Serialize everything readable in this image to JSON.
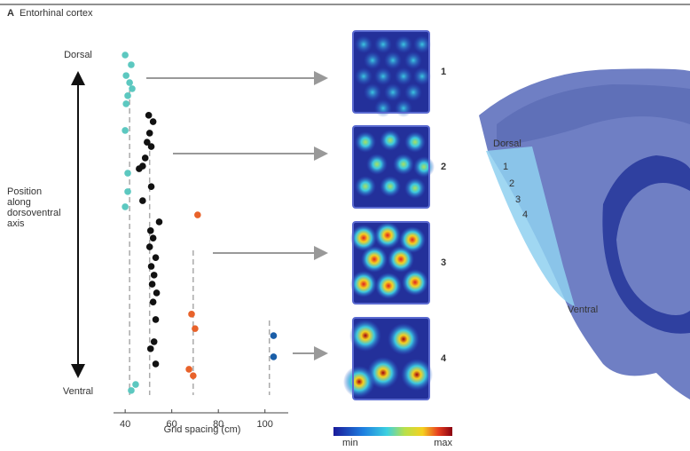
{
  "chart_data": {
    "type": "scatter",
    "xlabel": "Grid spacing (cm)",
    "ylabel": "Position along dorsoventral axis",
    "xlim": [
      35,
      110
    ],
    "xticks": [
      40,
      60,
      80,
      100
    ],
    "ylim": [
      0,
      1
    ],
    "yticks": [
      {
        "value": 1,
        "label": "Dorsal"
      },
      {
        "value": 0,
        "label": "Ventral"
      }
    ],
    "series": [
      {
        "color": "#5cc8c0",
        "mean": 41.9,
        "x": [
          40,
          42.6,
          40.4,
          41.9,
          43,
          41.1,
          40.4,
          40,
          41.1,
          41.1,
          40,
          44.5,
          42.6
        ],
        "values": [
          1.0,
          0.971,
          0.939,
          0.918,
          0.9,
          0.879,
          0.855,
          0.776,
          0.649,
          0.594,
          0.549,
          0.021,
          0.003
        ]
      },
      {
        "color": "#111111",
        "mean": 50.5,
        "x": [
          50.1,
          52,
          50.5,
          49.4,
          51.2,
          48.6,
          47.5,
          46,
          51.2,
          47.5,
          54.6,
          50.9,
          52,
          50.5,
          53.1,
          51.2,
          52.4,
          51.6,
          53.5,
          52,
          53.1,
          52.4,
          50.9,
          53.1
        ],
        "values": [
          0.821,
          0.802,
          0.768,
          0.741,
          0.728,
          0.694,
          0.67,
          0.662,
          0.609,
          0.567,
          0.504,
          0.478,
          0.456,
          0.43,
          0.398,
          0.372,
          0.346,
          0.319,
          0.293,
          0.266,
          0.214,
          0.148,
          0.127,
          0.082
        ]
      },
      {
        "color": "#e8622a",
        "mean": 69.2,
        "x": [
          71.1,
          68.5,
          70,
          67.4,
          69.2
        ],
        "values": [
          0.525,
          0.23,
          0.187,
          0.066,
          0.047
        ]
      },
      {
        "color": "#1a5ea8",
        "mean": 101.9,
        "x": [
          103.7,
          103.7
        ],
        "values": [
          0.166,
          0.103
        ]
      }
    ]
  },
  "figure": {
    "panel_label": "A",
    "panel_title": "Entorhinal cortex",
    "rate_map_labels": [
      "1",
      "2",
      "3",
      "4"
    ],
    "colorbar": {
      "min_label": "min",
      "max_label": "max"
    },
    "histology": {
      "dorsal_label": "Dorsal",
      "ventral_label": "Ventral",
      "layer_labels": [
        "1",
        "2",
        "3",
        "4"
      ]
    }
  }
}
